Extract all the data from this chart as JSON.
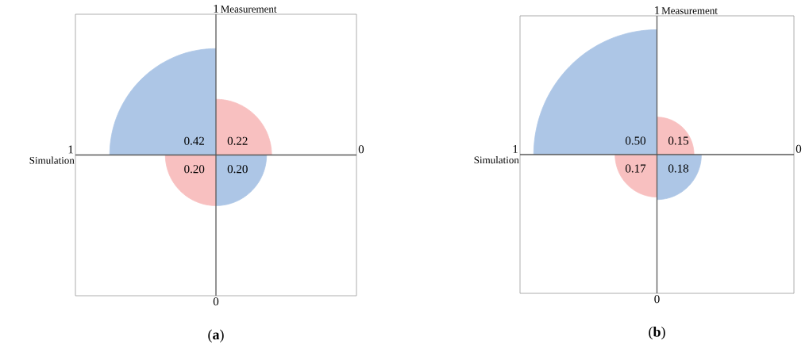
{
  "chart_data": [
    {
      "type": "other",
      "title": "(**a**)",
      "xlabel": "Simulation",
      "ylabel": "Measurement",
      "values": [
        0.42,
        0.22,
        0.2,
        0.2
      ],
      "value_labels": [
        "0.42",
        "0.22",
        "0.20",
        "0.20"
      ],
      "colors": [
        "#adc6e6",
        "#f8c0c0",
        "#f8c0c0",
        "#adc6e6"
      ],
      "annotations": [
        "1",
        "0",
        "1",
        "0"
      ]
    },
    {
      "type": "other",
      "title": "(**b**)",
      "xlabel": "Simulation",
      "ylabel": "Measurement",
      "values": [
        0.5,
        0.15,
        0.17,
        0.18
      ],
      "value_labels": [
        "0.50",
        "0.15",
        "0.17",
        "0.18"
      ],
      "colors": [
        "#adc6e6",
        "#f8c0c0",
        "#f8c0c0",
        "#adc6e6"
      ],
      "annotations": [
        "1",
        "0",
        "1",
        "0"
      ]
    }
  ]
}
